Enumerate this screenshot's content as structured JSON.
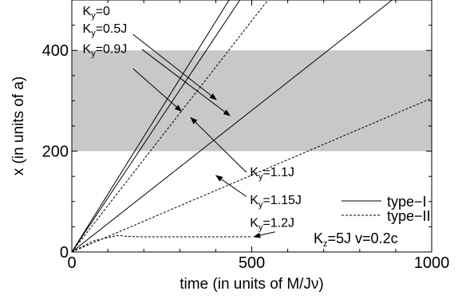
{
  "chart_data": {
    "type": "line",
    "xlabel": "time (in units of M/Jν)",
    "ylabel": "x (in units of a)",
    "xlim": [
      0,
      1000
    ],
    "ylim": [
      0,
      500
    ],
    "xticks": [
      0,
      500,
      1000
    ],
    "yticks": [
      0,
      200,
      400
    ],
    "shaded_band": {
      "y_from": 200,
      "y_to": 400,
      "color": "#c8c8c8"
    },
    "legend": {
      "placement": "right",
      "entries": [
        {
          "label": "type−I",
          "style": "solid"
        },
        {
          "label": "type−II",
          "style": "dashed"
        }
      ]
    },
    "parameter_label": "K",
    "parameter_sub_y": "y",
    "parameter_sub_z": "z",
    "condition_text": {
      "pre": "K",
      "sub": "z",
      "post": "=5J v=0.2c"
    },
    "series": [
      {
        "name": "Ky=0",
        "label_value": "=0",
        "style": "solid",
        "points": [
          [
            0,
            0
          ],
          [
            437,
            500
          ]
        ]
      },
      {
        "name": "Ky=0.5J",
        "label_value": "=0.5J",
        "style": "solid",
        "points": [
          [
            0,
            0
          ],
          [
            467,
            500
          ]
        ]
      },
      {
        "name": "Ky=0.9J",
        "label_value": "=0.9J",
        "style": "dashed",
        "points": [
          [
            0,
            0
          ],
          [
            545,
            500
          ]
        ]
      },
      {
        "name": "Ky=1.1J",
        "label_value": "=1.1J",
        "style": "solid",
        "points": [
          [
            0,
            0
          ],
          [
            890,
            500
          ]
        ]
      },
      {
        "name": "Ky=1.15J",
        "label_value": "=1.15J",
        "style": "dashed",
        "points": [
          [
            0,
            0
          ],
          [
            1000,
            305
          ]
        ]
      },
      {
        "name": "Ky=1.2J",
        "label_value": "=1.2J",
        "style": "dashed",
        "points": [
          [
            0,
            0
          ],
          [
            60,
            22
          ],
          [
            110,
            30
          ],
          [
            130,
            33
          ],
          [
            150,
            31
          ],
          [
            200,
            30
          ],
          [
            300,
            30
          ],
          [
            400,
            30
          ],
          [
            500,
            30
          ]
        ]
      }
    ],
    "annotations": [
      {
        "series": "Ky=0",
        "text_at": [
          30,
          470
        ],
        "arrow_from": [
          170,
          432
        ],
        "arrow_to": [
          402,
          302
        ]
      },
      {
        "series": "Ky=0.5J",
        "text_at": [
          30,
          435
        ],
        "arrow_from": [
          195,
          402
        ],
        "arrow_to": [
          440,
          270
        ]
      },
      {
        "series": "Ky=0.9J",
        "text_at": [
          30,
          395
        ],
        "arrow_from": [
          170,
          364
        ],
        "arrow_to": [
          305,
          279
        ]
      },
      {
        "series": "Ky=1.1J",
        "text_at": [
          495,
          150
        ],
        "arrow_from": [
          485,
          158
        ],
        "arrow_to": [
          330,
          267
        ]
      },
      {
        "series": "Ky=1.15J",
        "text_at": [
          495,
          95
        ],
        "arrow_from": [
          485,
          110
        ],
        "arrow_to": [
          400,
          152
        ]
      },
      {
        "series": "Ky=1.2J",
        "text_at": [
          495,
          50
        ],
        "arrow_from": [
          565,
          40
        ],
        "arrow_to": [
          505,
          30
        ]
      }
    ]
  }
}
